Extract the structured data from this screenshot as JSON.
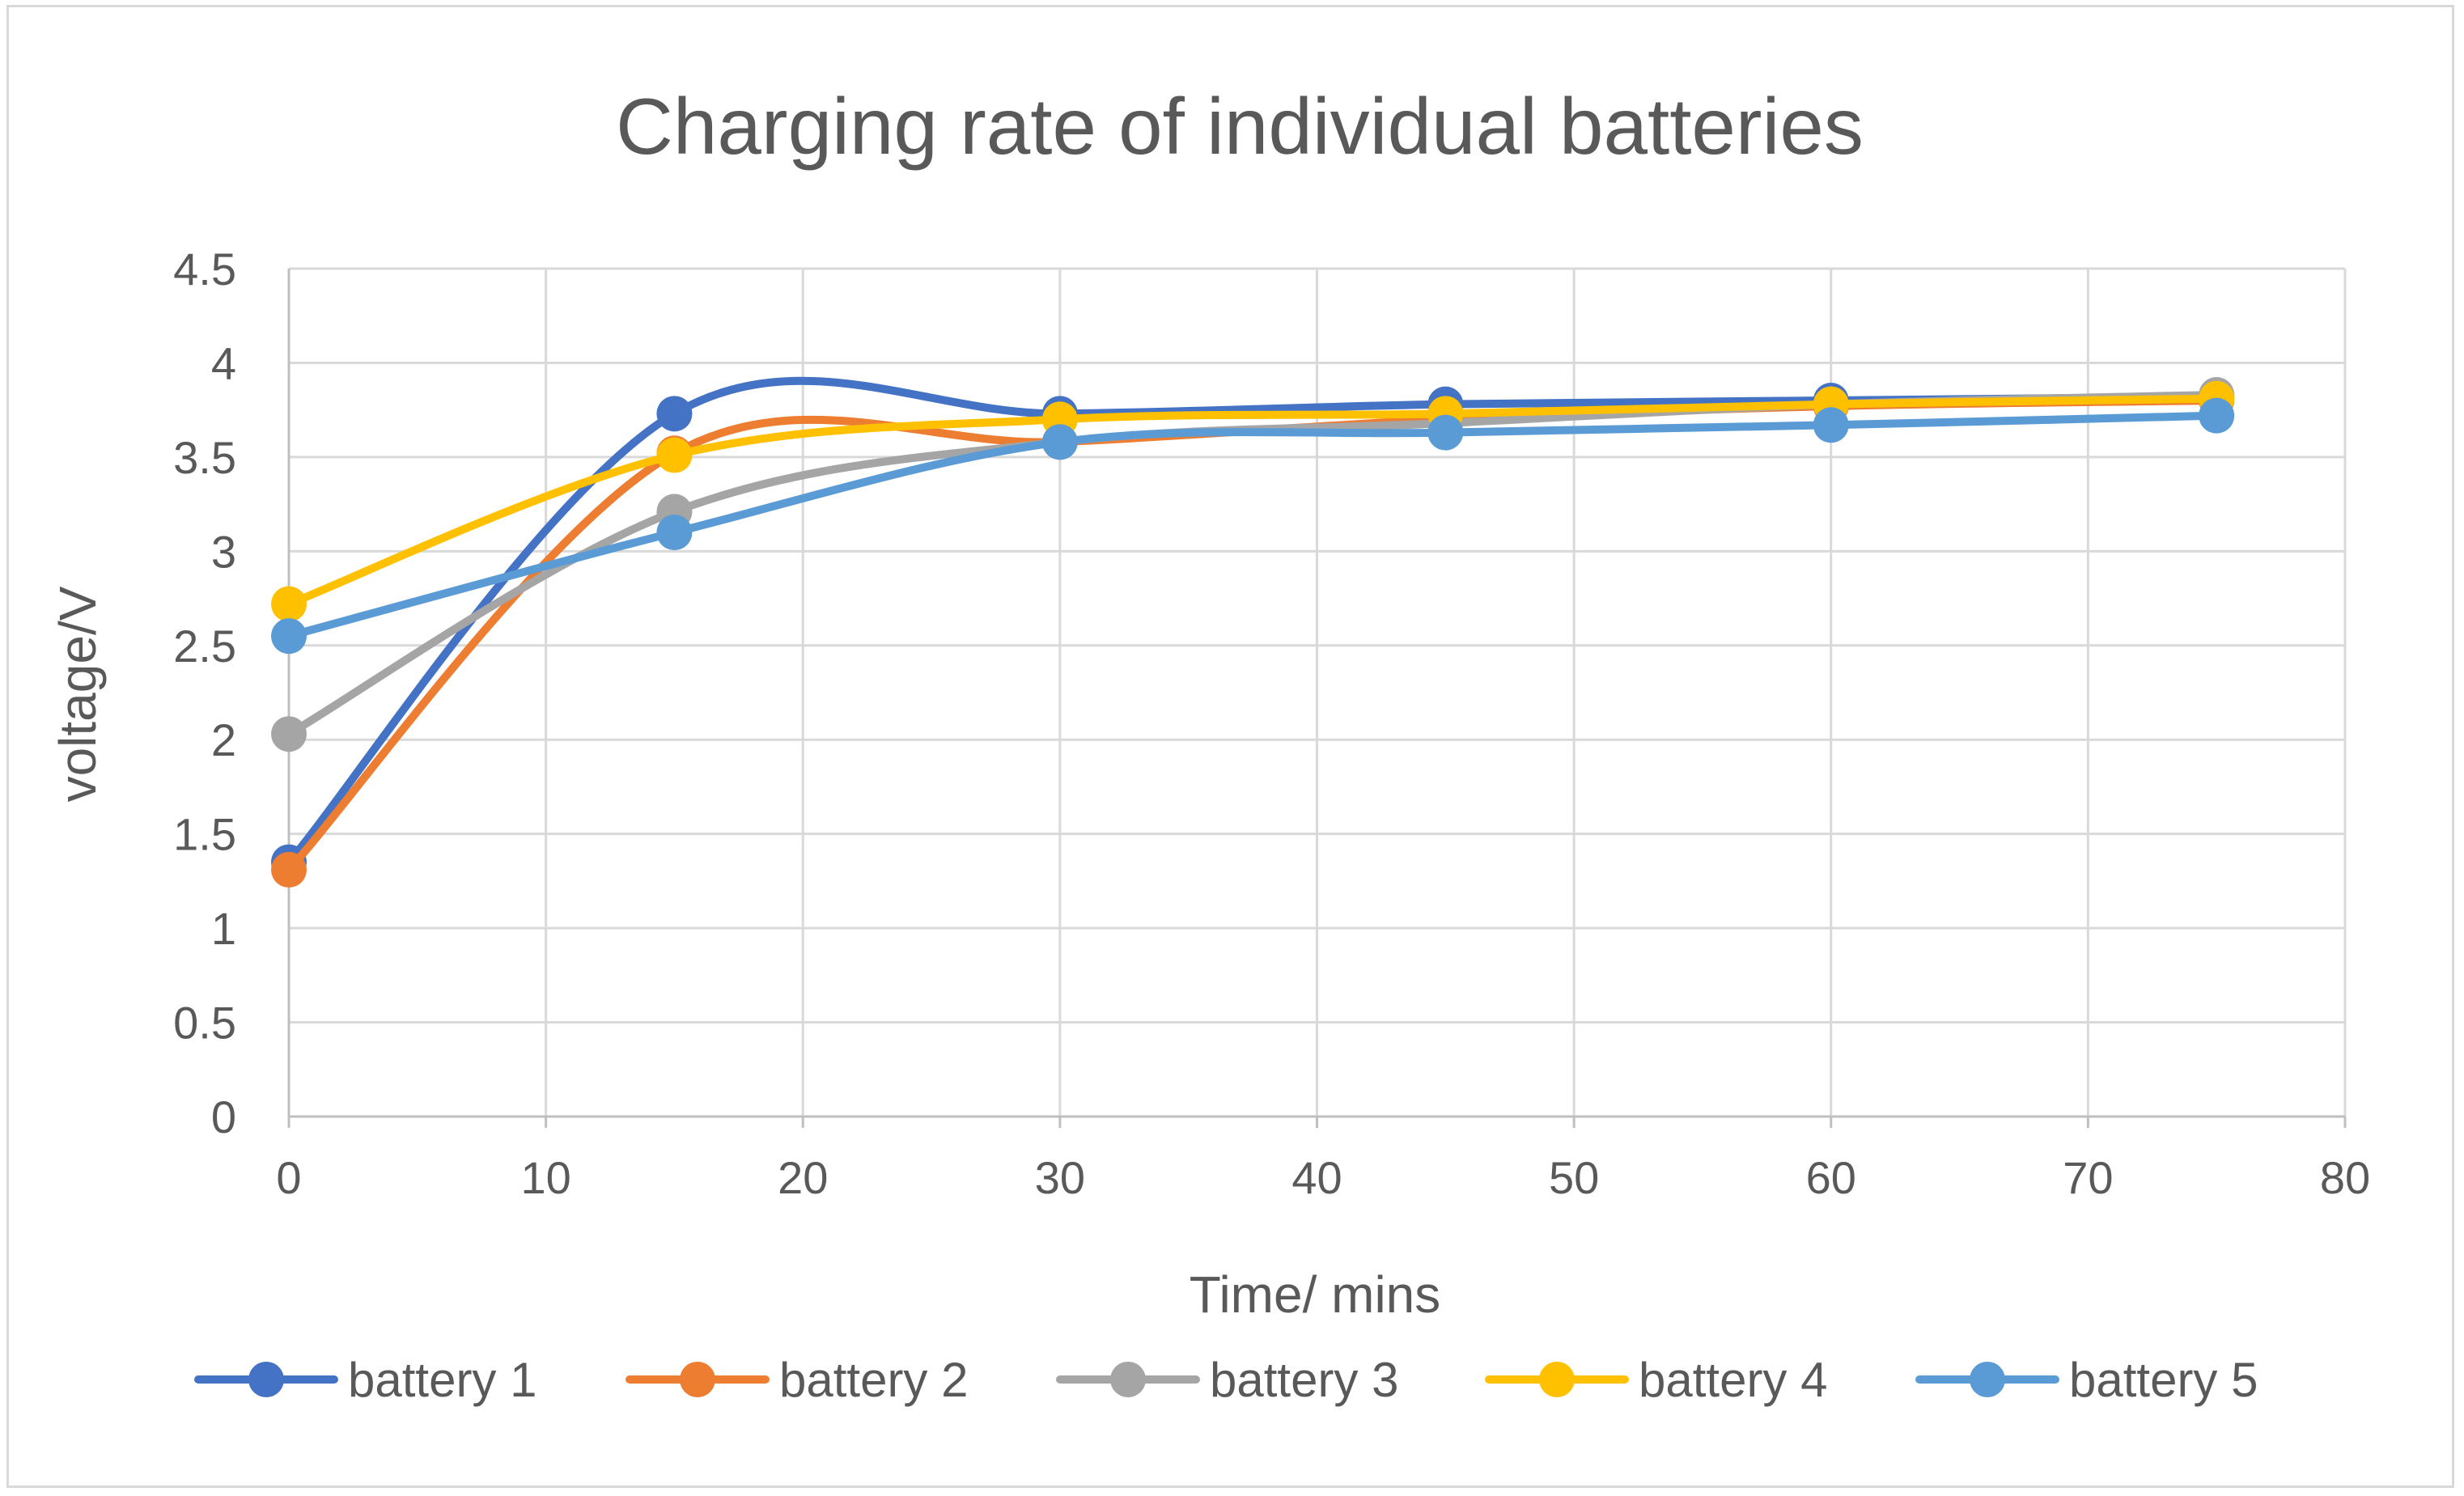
{
  "chart_data": {
    "type": "line",
    "title": "Charging rate of individual batteries",
    "xlabel": "Time/ mins",
    "ylabel": "voltage/V",
    "xlim": [
      0,
      80
    ],
    "ylim": [
      0,
      4.5
    ],
    "x_ticks": [
      "0",
      "10",
      "20",
      "30",
      "40",
      "50",
      "60",
      "70",
      "80"
    ],
    "y_ticks": [
      "0",
      "0.5",
      "1",
      "1.5",
      "2",
      "2.5",
      "3",
      "3.5",
      "4",
      "4.5"
    ],
    "grid": true,
    "legend_position": "bottom",
    "smooth": true,
    "x": [
      0,
      15,
      30,
      45,
      60,
      75
    ],
    "series": [
      {
        "name": "battery 1",
        "color": "#4472C4",
        "values": [
          1.35,
          3.73,
          3.73,
          3.78,
          3.8,
          3.82
        ]
      },
      {
        "name": "battery 2",
        "color": "#ED7D31",
        "values": [
          1.31,
          3.52,
          3.58,
          3.7,
          3.77,
          3.8
        ]
      },
      {
        "name": "battery 3",
        "color": "#A5A5A5",
        "values": [
          2.03,
          3.21,
          3.58,
          3.68,
          3.78,
          3.83
        ]
      },
      {
        "name": "battery 4",
        "color": "#FFC000",
        "values": [
          2.72,
          3.51,
          3.7,
          3.73,
          3.78,
          3.81
        ]
      },
      {
        "name": "battery 5",
        "color": "#5B9BD5",
        "values": [
          2.55,
          3.1,
          3.58,
          3.63,
          3.67,
          3.72
        ]
      }
    ]
  }
}
